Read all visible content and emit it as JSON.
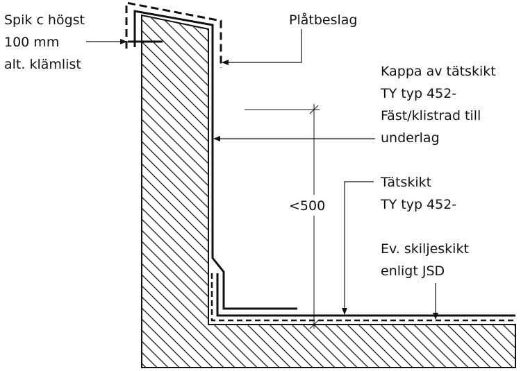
{
  "labels": {
    "nail_line1": "Spik c högst",
    "nail_line2": "100 mm",
    "nail_line3": "alt. klämlist",
    "flashing": "Plåtbeslag",
    "cover_line1": "Kappa av tätskikt",
    "cover_line2": "TY typ 452-",
    "cover_line3": "Fäst/klistrad till",
    "cover_line4": "underlag",
    "dimension": "<500",
    "membrane_line1": "Tätskikt",
    "membrane_line2": "TY typ 452-",
    "separator_line1": "Ev. skiljeskikt",
    "separator_line2": "enligt JSD"
  },
  "colors": {
    "ink": "#111111",
    "background": "#ffffff"
  }
}
